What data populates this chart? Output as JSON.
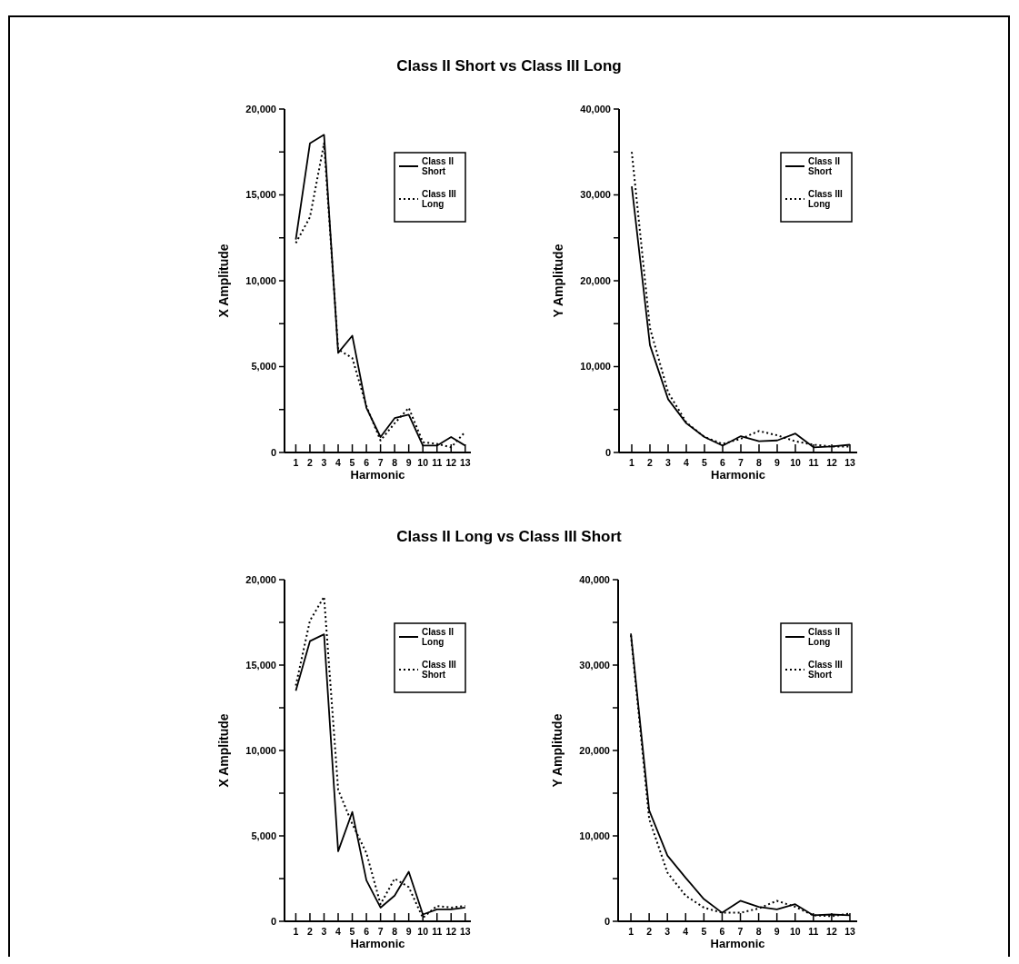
{
  "chart_data": [
    {
      "type": "line",
      "title": "Class II Short vs Class III Long",
      "xlabel": "Harmonic",
      "ylabel": "X Amplitude",
      "x": [
        1,
        2,
        3,
        4,
        5,
        6,
        7,
        8,
        9,
        10,
        11,
        12,
        13
      ],
      "xlim": [
        0.2,
        13.4
      ],
      "xticks": [
        1,
        2,
        3,
        4,
        5,
        6,
        7,
        8,
        9,
        10,
        11,
        12,
        13
      ],
      "ylim": [
        0,
        20000
      ],
      "yticks": [
        {
          "value": 0,
          "label": "0"
        },
        {
          "value": 2500,
          "label": null
        },
        {
          "value": 5000,
          "label": "5,000"
        },
        {
          "value": 7500,
          "label": null
        },
        {
          "value": 10000,
          "label": "10,000"
        },
        {
          "value": 12500,
          "label": null
        },
        {
          "value": 15000,
          "label": "15,000"
        },
        {
          "value": 17500,
          "label": null
        },
        {
          "value": 20000,
          "label": "20,000"
        }
      ],
      "legend": "top right",
      "grid": false,
      "marker": "none",
      "series": [
        {
          "name": "Class II Short",
          "color": "#000000",
          "line_style": "solid",
          "values": [
            12400,
            18000,
            18500,
            5800,
            6800,
            2600,
            900,
            2000,
            2200,
            400,
            400,
            900,
            400
          ]
        },
        {
          "name": "Class III Long",
          "color": "#000000",
          "line_style": "dotted",
          "values": [
            12200,
            13700,
            18000,
            6000,
            5500,
            2700,
            700,
            1700,
            2600,
            600,
            500,
            300,
            1200
          ]
        }
      ]
    },
    {
      "type": "line",
      "xlabel": "Harmonic",
      "ylabel": "Y Amplitude",
      "x": [
        1,
        2,
        3,
        4,
        5,
        6,
        7,
        8,
        9,
        10,
        11,
        12,
        13
      ],
      "xlim": [
        0.3,
        13.4
      ],
      "xticks": [
        1,
        2,
        3,
        4,
        5,
        6,
        7,
        8,
        9,
        10,
        11,
        12,
        13
      ],
      "ylim": [
        0,
        40000
      ],
      "yticks": [
        {
          "value": 0,
          "label": "0"
        },
        {
          "value": 5000,
          "label": null
        },
        {
          "value": 10000,
          "label": "10,000"
        },
        {
          "value": 15000,
          "label": null
        },
        {
          "value": 20000,
          "label": "20,000"
        },
        {
          "value": 25000,
          "label": null
        },
        {
          "value": 30000,
          "label": "30,000"
        },
        {
          "value": 35000,
          "label": null
        },
        {
          "value": 40000,
          "label": "40,000"
        }
      ],
      "legend": "top right",
      "grid": false,
      "marker": "none",
      "series": [
        {
          "name": "Class II Short",
          "color": "#000000",
          "line_style": "solid",
          "values": [
            31000,
            12500,
            6200,
            3400,
            1800,
            800,
            1900,
            1300,
            1400,
            2200,
            600,
            700,
            900
          ]
        },
        {
          "name": "Class III Long",
          "color": "#000000",
          "line_style": "dotted",
          "values": [
            35000,
            14500,
            7000,
            3500,
            1800,
            1000,
            1600,
            2500,
            2000,
            1300,
            900,
            700,
            700
          ]
        }
      ]
    },
    {
      "type": "line",
      "title": "Class II Long vs Class III Short",
      "xlabel": "Harmonic",
      "ylabel": "X Amplitude",
      "x": [
        1,
        2,
        3,
        4,
        5,
        6,
        7,
        8,
        9,
        10,
        11,
        12,
        13
      ],
      "xlim": [
        0.2,
        13.4
      ],
      "xticks": [
        1,
        2,
        3,
        4,
        5,
        6,
        7,
        8,
        9,
        10,
        11,
        12,
        13
      ],
      "ylim": [
        0,
        20000
      ],
      "yticks": [
        {
          "value": 0,
          "label": "0"
        },
        {
          "value": 2500,
          "label": null
        },
        {
          "value": 5000,
          "label": "5,000"
        },
        {
          "value": 7500,
          "label": null
        },
        {
          "value": 10000,
          "label": "10,000"
        },
        {
          "value": 12500,
          "label": null
        },
        {
          "value": 15000,
          "label": "15,000"
        },
        {
          "value": 17500,
          "label": null
        },
        {
          "value": 20000,
          "label": "20,000"
        }
      ],
      "legend": "top right",
      "grid": false,
      "marker": "none",
      "series": [
        {
          "name": "Class II Long",
          "color": "#000000",
          "line_style": "solid",
          "values": [
            13500,
            16400,
            16800,
            4100,
            6400,
            2400,
            800,
            1500,
            2900,
            400,
            700,
            700,
            800
          ]
        },
        {
          "name": "Class III Short",
          "color": "#000000",
          "line_style": "dotted",
          "values": [
            13800,
            17600,
            19000,
            7700,
            5700,
            4000,
            1000,
            2500,
            2000,
            200,
            900,
            800,
            900
          ]
        }
      ]
    },
    {
      "type": "line",
      "xlabel": "Harmonic",
      "ylabel": "Y Amplitude",
      "x": [
        1,
        2,
        3,
        4,
        5,
        6,
        7,
        8,
        9,
        10,
        11,
        12,
        13
      ],
      "xlim": [
        0.3,
        13.4
      ],
      "xticks": [
        1,
        2,
        3,
        4,
        5,
        6,
        7,
        8,
        9,
        10,
        11,
        12,
        13
      ],
      "ylim": [
        0,
        40000
      ],
      "yticks": [
        {
          "value": 0,
          "label": "0"
        },
        {
          "value": 5000,
          "label": null
        },
        {
          "value": 10000,
          "label": "10,000"
        },
        {
          "value": 15000,
          "label": null
        },
        {
          "value": 20000,
          "label": "20,000"
        },
        {
          "value": 25000,
          "label": null
        },
        {
          "value": 30000,
          "label": "30,000"
        },
        {
          "value": 35000,
          "label": null
        },
        {
          "value": 40000,
          "label": "40,000"
        }
      ],
      "legend": "top right",
      "grid": false,
      "marker": "none",
      "series": [
        {
          "name": "Class II Long",
          "color": "#000000",
          "line_style": "solid",
          "values": [
            33700,
            13000,
            7700,
            5100,
            2600,
            1000,
            2400,
            1700,
            1400,
            2000,
            700,
            800,
            700
          ]
        },
        {
          "name": "Class III Short",
          "color": "#000000",
          "line_style": "dotted",
          "values": [
            33500,
            12000,
            5700,
            3000,
            1600,
            1000,
            1000,
            1500,
            2400,
            1700,
            700,
            600,
            900
          ]
        }
      ]
    }
  ]
}
